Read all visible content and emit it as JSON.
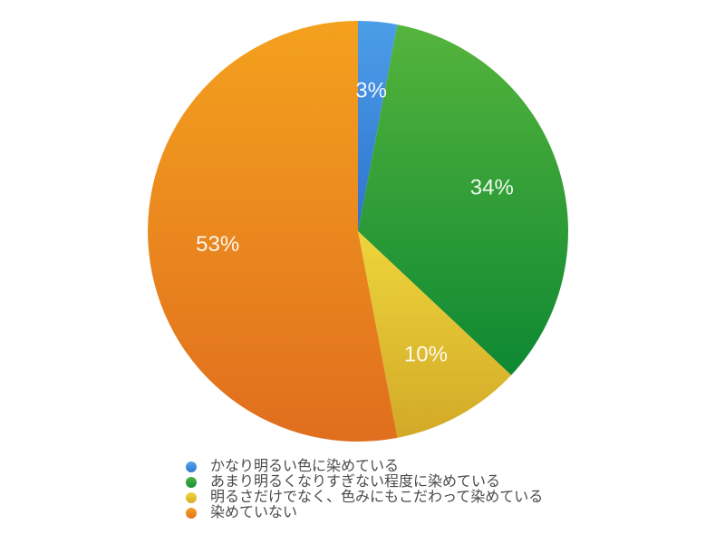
{
  "page": {
    "background": "#ffffff"
  },
  "chart_data": {
    "type": "pie",
    "title": "",
    "legend_position": "bottom",
    "start_angle_deg": 0,
    "clockwise": true,
    "total": 100,
    "categories": [
      "かなり明るい色に染めている",
      "あまり明るくなりすぎない程度に染めている",
      "明るさだけでなく、色みにもこだわって染めている",
      "染めていない"
    ],
    "values": [
      3,
      34,
      10,
      53
    ],
    "slices": [
      {
        "label": "かなり明るい色に染めている",
        "value": 3,
        "pct_label": "3%",
        "color_top": "#4C9EE8",
        "color_bottom": "#2F72CE",
        "dot_color_top": "#54A4EA",
        "dot_color_bottom": "#2F79D2"
      },
      {
        "label": "あまり明るくなりすぎない程度に染めている",
        "value": 34,
        "pct_label": "34%",
        "color_top": "#55B43C",
        "color_bottom": "#0E8833",
        "dot_color_top": "#4FB243",
        "dot_color_bottom": "#159038"
      },
      {
        "label": "明るさだけでなく、色みにもこだわって染めている",
        "value": 10,
        "pct_label": "10%",
        "color_top": "#EED53C",
        "color_bottom": "#D2A927",
        "dot_color_top": "#EFD63E",
        "dot_color_bottom": "#D6AD28"
      },
      {
        "label": "染めていない",
        "value": 53,
        "pct_label": "53%",
        "color_top": "#F4A11E",
        "color_bottom": "#E06E1E",
        "dot_color_top": "#F4A120",
        "dot_color_bottom": "#E2741E"
      }
    ]
  }
}
